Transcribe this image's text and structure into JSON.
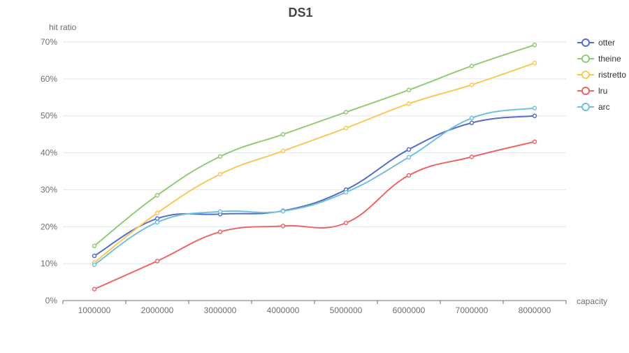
{
  "chart_data": {
    "type": "line",
    "title": "DS1",
    "xlabel": "capacity",
    "ylabel": "hit ratio",
    "categories": [
      "1000000",
      "2000000",
      "3000000",
      "4000000",
      "5000000",
      "6000000",
      "7000000",
      "8000000"
    ],
    "ylim": [
      0,
      70
    ],
    "yticks": [
      0,
      10,
      20,
      30,
      40,
      50,
      60,
      70
    ],
    "ytick_labels": [
      "0%",
      "10%",
      "20%",
      "30%",
      "40%",
      "50%",
      "60%",
      "70%"
    ],
    "grid": true,
    "smooth": true,
    "legend_position": "right",
    "series": [
      {
        "name": "otter",
        "color": "#5470c6",
        "values": [
          12.1,
          22.2,
          23.4,
          24.3,
          30.0,
          40.9,
          48.1,
          50.0
        ]
      },
      {
        "name": "theine",
        "color": "#91cc75",
        "values": [
          14.8,
          28.5,
          39.0,
          45.0,
          51.0,
          57.0,
          63.5,
          69.2
        ]
      },
      {
        "name": "ristretto",
        "color": "#fac858",
        "values": [
          10.3,
          23.7,
          34.2,
          40.5,
          46.7,
          53.3,
          58.4,
          64.3
        ]
      },
      {
        "name": "lru",
        "color": "#ee6666",
        "values": [
          3.1,
          10.7,
          18.6,
          20.2,
          21.0,
          33.9,
          38.9,
          43.0
        ]
      },
      {
        "name": "arc",
        "color": "#73c0de",
        "values": [
          9.7,
          21.2,
          24.1,
          24.2,
          29.3,
          38.8,
          49.4,
          52.1
        ]
      }
    ]
  }
}
